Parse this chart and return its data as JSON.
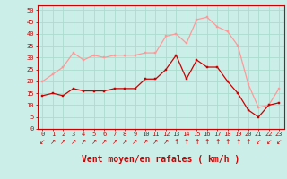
{
  "x": [
    0,
    1,
    2,
    3,
    4,
    5,
    6,
    7,
    8,
    9,
    10,
    11,
    12,
    13,
    14,
    15,
    16,
    17,
    18,
    19,
    20,
    21,
    22,
    23
  ],
  "mean_wind": [
    14,
    15,
    14,
    17,
    16,
    16,
    16,
    17,
    17,
    17,
    21,
    21,
    25,
    31,
    21,
    29,
    26,
    26,
    20,
    15,
    8,
    5,
    10,
    11
  ],
  "gust_wind": [
    20,
    23,
    26,
    32,
    29,
    31,
    30,
    31,
    31,
    31,
    32,
    32,
    39,
    40,
    36,
    46,
    47,
    43,
    41,
    35,
    19,
    9,
    10,
    17
  ],
  "bg_color": "#cceee8",
  "grid_color": "#aaddcc",
  "mean_color": "#cc0000",
  "gust_color": "#ff9999",
  "xlabel": "Vent moyen/en rafales ( km/h )",
  "xlabel_color": "#cc0000",
  "xlabel_fontsize": 7,
  "tick_color": "#cc0000",
  "tick_fontsize": 5,
  "ylim": [
    0,
    52
  ],
  "yticks": [
    0,
    5,
    10,
    15,
    20,
    25,
    30,
    35,
    40,
    45,
    50
  ],
  "arrows": [
    "↙",
    "↗",
    "↗",
    "↗",
    "↗",
    "↗",
    "↗",
    "↗",
    "↗",
    "↗",
    "↗",
    "↗",
    "↗",
    "↑",
    "↑",
    "↑",
    "↑",
    "↑",
    "↑",
    "↑",
    "↑",
    "↙",
    "↙",
    "↙"
  ]
}
